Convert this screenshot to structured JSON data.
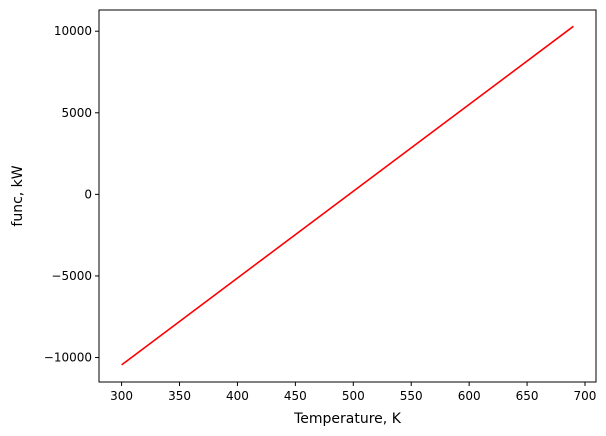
{
  "chart_data": {
    "type": "line",
    "title": "",
    "xlabel": "Temperature, K",
    "ylabel": "func, kW",
    "xlim": [
      280.5,
      709.5
    ],
    "ylim": [
      -11500,
      11300
    ],
    "x_ticks": [
      300,
      350,
      400,
      450,
      500,
      550,
      600,
      650,
      700
    ],
    "x_tick_labels": [
      "300",
      "350",
      "400",
      "450",
      "500",
      "550",
      "600",
      "650",
      "700"
    ],
    "y_ticks": [
      -10000,
      -5000,
      0,
      5000,
      10000
    ],
    "y_tick_labels": [
      "−10000",
      "−5000",
      "0",
      "5000",
      "10000"
    ],
    "grid": false,
    "series": [
      {
        "color": "#ff0000",
        "x": [
          300,
          690
        ],
        "y": [
          -10450,
          10300
        ]
      }
    ]
  }
}
